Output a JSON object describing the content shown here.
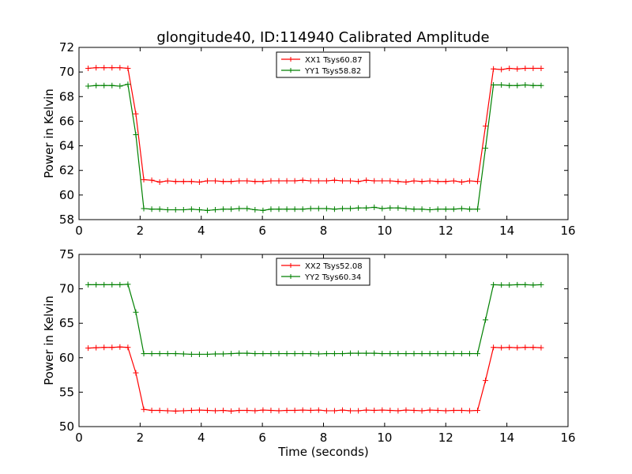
{
  "figure": {
    "title": "glongitude40, ID:114940 Calibrated Amplitude"
  },
  "chart_data": [
    {
      "type": "line",
      "title": "glongitude40, ID:114940 Calibrated Amplitude",
      "xlabel": "",
      "ylabel": "Power in Kelvin",
      "xlim": [
        0,
        16
      ],
      "ylim": [
        58,
        72
      ],
      "xticks": [
        "0",
        "2",
        "4",
        "6",
        "8",
        "10",
        "12",
        "14",
        "16"
      ],
      "yticks": [
        "58",
        "60",
        "62",
        "64",
        "66",
        "68",
        "70",
        "72"
      ],
      "legend_position": "top-center",
      "grid": false,
      "x": [
        0.3,
        0.56,
        0.82,
        1.08,
        1.34,
        1.6,
        1.86,
        2.12,
        2.38,
        2.64,
        2.9,
        3.16,
        3.42,
        3.68,
        3.94,
        4.2,
        4.46,
        4.72,
        4.98,
        5.24,
        5.5,
        5.76,
        6.02,
        6.28,
        6.54,
        6.8,
        7.06,
        7.32,
        7.58,
        7.84,
        8.1,
        8.36,
        8.62,
        8.88,
        9.14,
        9.4,
        9.66,
        9.92,
        10.18,
        10.44,
        10.7,
        10.96,
        11.22,
        11.48,
        11.74,
        12.0,
        12.26,
        12.52,
        12.78,
        13.04,
        13.3,
        13.56,
        13.82,
        14.08,
        14.34,
        14.6,
        14.86,
        15.12
      ],
      "series": [
        {
          "name": "XX1 Tsys60.87",
          "color": "#ff0000",
          "values": [
            70.3,
            70.35,
            70.35,
            70.35,
            70.35,
            70.3,
            66.6,
            61.25,
            61.2,
            61.05,
            61.15,
            61.1,
            61.1,
            61.1,
            61.05,
            61.15,
            61.15,
            61.1,
            61.1,
            61.15,
            61.15,
            61.1,
            61.1,
            61.15,
            61.15,
            61.15,
            61.15,
            61.2,
            61.15,
            61.15,
            61.15,
            61.2,
            61.15,
            61.15,
            61.1,
            61.2,
            61.15,
            61.15,
            61.15,
            61.1,
            61.05,
            61.15,
            61.1,
            61.15,
            61.1,
            61.1,
            61.15,
            61.05,
            61.15,
            61.1,
            65.6,
            70.25,
            70.2,
            70.3,
            70.25,
            70.3,
            70.3,
            70.3
          ]
        },
        {
          "name": "YY1 Tsys58.82",
          "color": "#008000",
          "values": [
            68.85,
            68.9,
            68.9,
            68.9,
            68.85,
            69.0,
            64.9,
            58.9,
            58.85,
            58.85,
            58.8,
            58.8,
            58.8,
            58.85,
            58.8,
            58.75,
            58.8,
            58.85,
            58.85,
            58.9,
            58.9,
            58.8,
            58.75,
            58.85,
            58.85,
            58.85,
            58.85,
            58.85,
            58.9,
            58.9,
            58.9,
            58.85,
            58.9,
            58.9,
            58.95,
            58.95,
            59.0,
            58.9,
            58.95,
            58.95,
            58.9,
            58.85,
            58.85,
            58.8,
            58.85,
            58.85,
            58.85,
            58.9,
            58.85,
            58.85,
            63.8,
            68.95,
            68.95,
            68.9,
            68.9,
            68.95,
            68.9,
            68.9
          ]
        }
      ]
    },
    {
      "type": "line",
      "title": "",
      "xlabel": "Time (seconds)",
      "ylabel": "Power in Kelvin",
      "xlim": [
        0,
        16
      ],
      "ylim": [
        50,
        75
      ],
      "xticks": [
        "0",
        "2",
        "4",
        "6",
        "8",
        "10",
        "12",
        "14",
        "16"
      ],
      "yticks": [
        "50",
        "55",
        "60",
        "65",
        "70",
        "75"
      ],
      "legend_position": "top-center",
      "grid": false,
      "x": [
        0.3,
        0.56,
        0.82,
        1.08,
        1.34,
        1.6,
        1.86,
        2.12,
        2.38,
        2.64,
        2.9,
        3.16,
        3.42,
        3.68,
        3.94,
        4.2,
        4.46,
        4.72,
        4.98,
        5.24,
        5.5,
        5.76,
        6.02,
        6.28,
        6.54,
        6.8,
        7.06,
        7.32,
        7.58,
        7.84,
        8.1,
        8.36,
        8.62,
        8.88,
        9.14,
        9.4,
        9.66,
        9.92,
        10.18,
        10.44,
        10.7,
        10.96,
        11.22,
        11.48,
        11.74,
        12.0,
        12.26,
        12.52,
        12.78,
        13.04,
        13.3,
        13.56,
        13.82,
        14.08,
        14.34,
        14.6,
        14.86,
        15.12
      ],
      "series": [
        {
          "name": "XX2 Tsys52.08",
          "color": "#ff0000",
          "values": [
            61.4,
            61.45,
            61.5,
            61.5,
            61.55,
            61.5,
            57.8,
            52.5,
            52.35,
            52.35,
            52.3,
            52.25,
            52.3,
            52.35,
            52.4,
            52.35,
            52.3,
            52.35,
            52.25,
            52.35,
            52.35,
            52.3,
            52.4,
            52.35,
            52.3,
            52.35,
            52.35,
            52.4,
            52.35,
            52.4,
            52.3,
            52.3,
            52.4,
            52.3,
            52.3,
            52.4,
            52.35,
            52.4,
            52.35,
            52.3,
            52.4,
            52.35,
            52.3,
            52.4,
            52.35,
            52.3,
            52.35,
            52.35,
            52.3,
            52.35,
            56.7,
            61.5,
            61.45,
            61.5,
            61.45,
            61.5,
            61.5,
            61.45
          ]
        },
        {
          "name": "YY2 Tsys60.34",
          "color": "#008000",
          "values": [
            70.6,
            70.6,
            70.6,
            70.6,
            70.6,
            70.65,
            66.6,
            60.6,
            60.6,
            60.6,
            60.6,
            60.6,
            60.55,
            60.5,
            60.5,
            60.5,
            60.55,
            60.55,
            60.6,
            60.65,
            60.65,
            60.6,
            60.6,
            60.6,
            60.6,
            60.6,
            60.6,
            60.6,
            60.6,
            60.55,
            60.6,
            60.6,
            60.6,
            60.65,
            60.65,
            60.65,
            60.65,
            60.6,
            60.6,
            60.6,
            60.6,
            60.6,
            60.6,
            60.6,
            60.6,
            60.6,
            60.6,
            60.6,
            60.6,
            60.6,
            65.5,
            70.6,
            70.55,
            70.55,
            70.6,
            70.6,
            70.55,
            70.6
          ]
        }
      ]
    }
  ]
}
